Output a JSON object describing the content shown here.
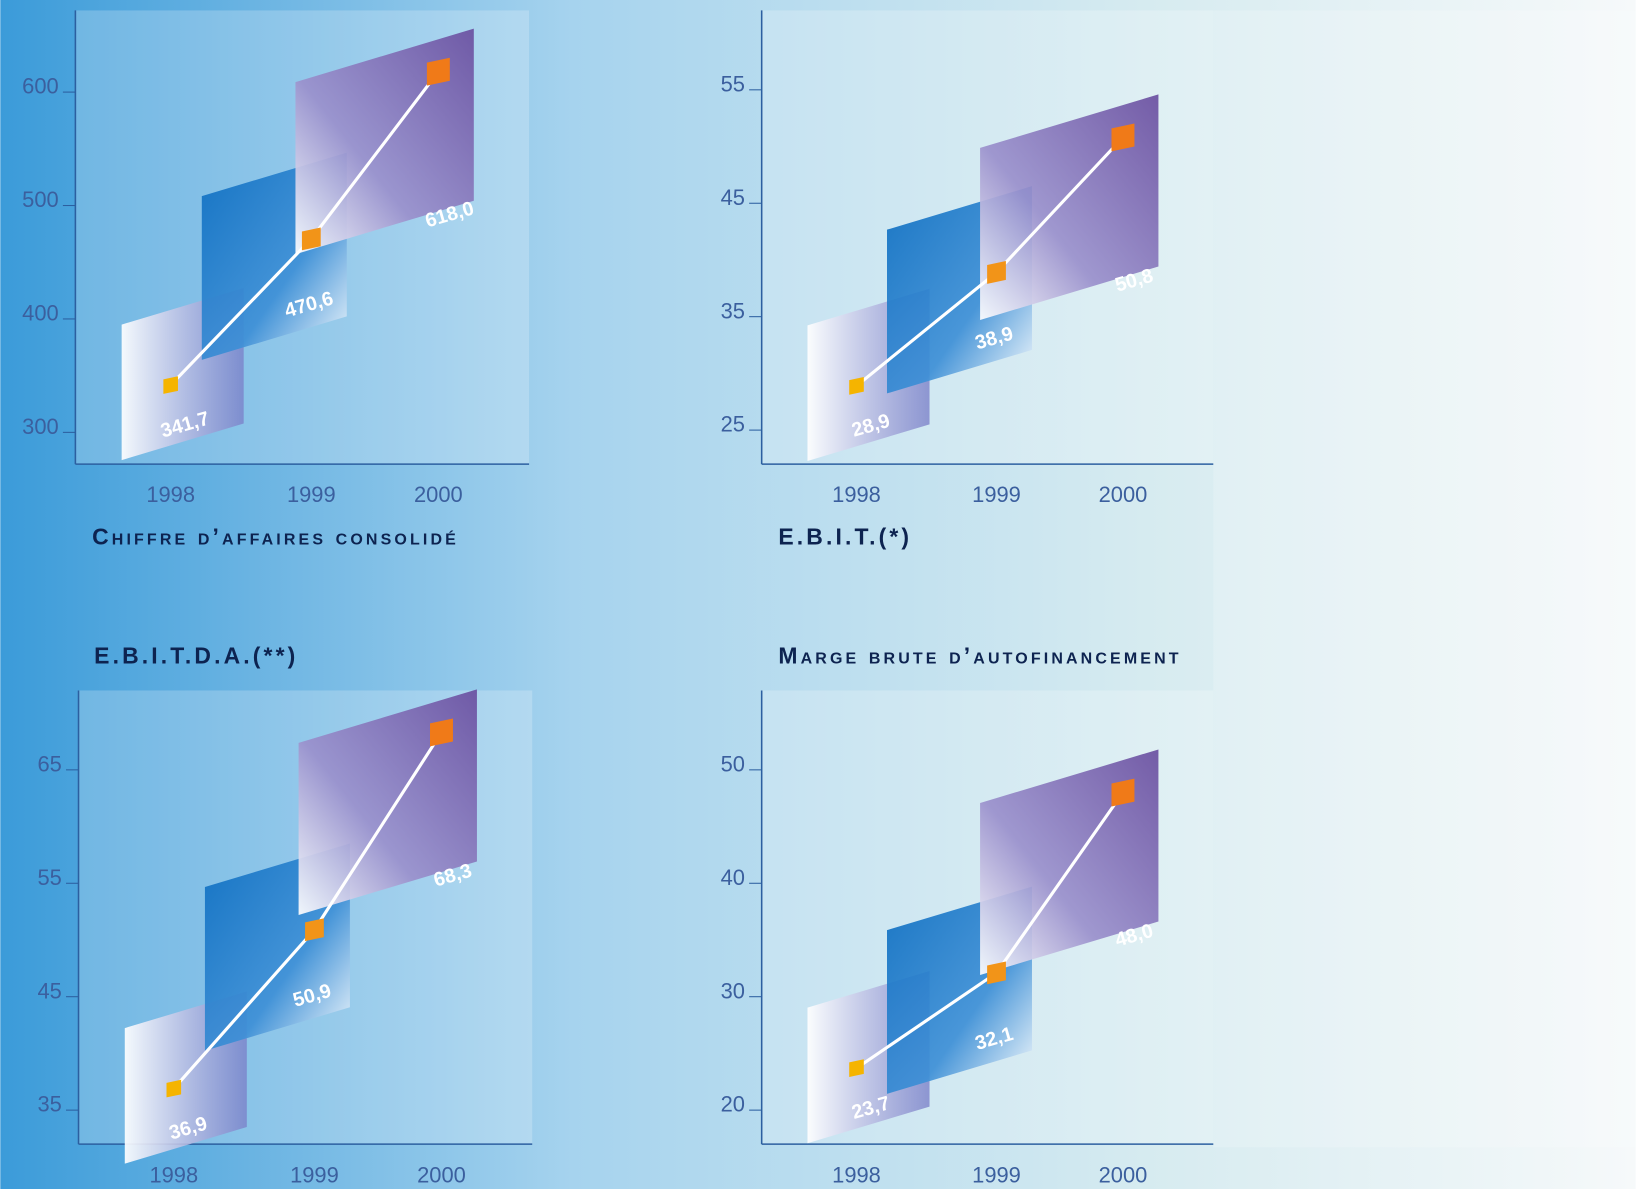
{
  "chart_data": [
    {
      "type": "line",
      "title": "Chiffre d’affaires consolidé",
      "categories": [
        "1998",
        "1999",
        "2000"
      ],
      "values": [
        341.7,
        470.6,
        618.0
      ],
      "value_labels": [
        "341,7",
        "470,6",
        "618,0"
      ],
      "color": "#ffffff",
      "ylim": [
        272,
        672
      ],
      "yticks": [
        300,
        400,
        500,
        600
      ]
    },
    {
      "type": "line",
      "title": "E.B.I.T.(*)",
      "categories": [
        "1998",
        "1999",
        "2000"
      ],
      "values": [
        28.9,
        38.9,
        50.8
      ],
      "value_labels": [
        "28,9",
        "38,9",
        "50,8"
      ],
      "color": "#ffffff",
      "ylim": [
        22,
        62
      ],
      "yticks": [
        25,
        35,
        45,
        55
      ]
    },
    {
      "type": "line",
      "title": "E.B.I.T.D.A.(**)",
      "categories": [
        "1998",
        "1999",
        "2000"
      ],
      "values": [
        36.9,
        50.9,
        68.3
      ],
      "value_labels": [
        "36,9",
        "50,9",
        "68,3"
      ],
      "color": "#ffffff",
      "ylim": [
        32,
        72
      ],
      "yticks": [
        35,
        45,
        55,
        65
      ]
    },
    {
      "type": "line",
      "title": "Marge brute d’autofinancement",
      "categories": [
        "1998",
        "1999",
        "2000"
      ],
      "values": [
        23.7,
        32.1,
        48.0
      ],
      "value_labels": [
        "23,7",
        "32,1",
        "48,0"
      ],
      "color": "#ffffff",
      "ylim": [
        17,
        57
      ],
      "yticks": [
        20,
        30,
        40,
        50
      ]
    }
  ]
}
